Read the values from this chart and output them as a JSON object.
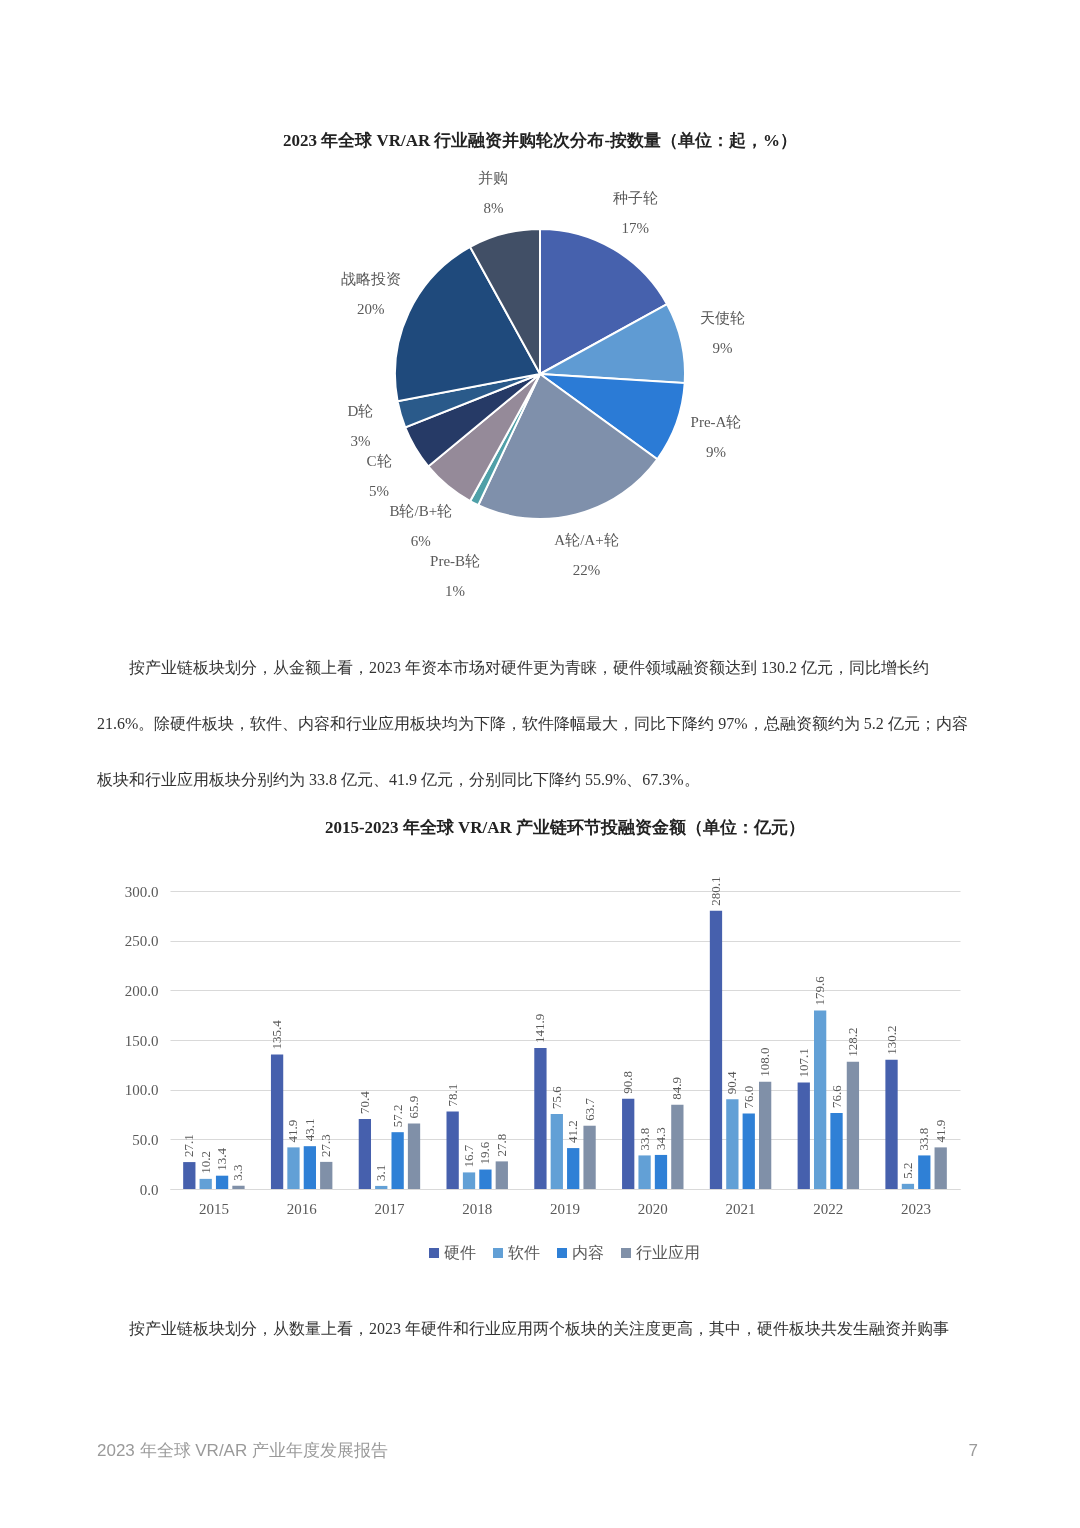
{
  "chart_data": [
    {
      "type": "pie",
      "title": "2023 年全球 VR/AR 行业融资并购轮次分布-按数量（单位：起，%）",
      "categories": [
        "种子轮",
        "天使轮",
        "Pre-A轮",
        "A轮/A+轮",
        "Pre-B轮",
        "B轮/B+轮",
        "C轮",
        "D轮",
        "战略投资",
        "并购"
      ],
      "values": [
        17,
        9,
        9,
        22,
        1,
        6,
        5,
        3,
        20,
        8
      ],
      "value_labels": [
        "17%",
        "9%",
        "9%",
        "22%",
        "1%",
        "6%",
        "5%",
        "3%",
        "20%",
        "8%"
      ],
      "colors": [
        "#4661ad",
        "#5f9bd3",
        "#2b7bd6",
        "#7f90ab",
        "#4fa0a8",
        "#958a99",
        "#263a66",
        "#2a5a8a",
        "#1f4a7c",
        "#414f66"
      ],
      "annotations": [
        "按产业链板块划分，从金额上看，2023 年资本市场对硬件更为青睐，硬件领域融资额达到 130.2 亿元，同比增长约21.6%。除硬件板块，软件、内容和行业应用板块均为下降，软件降幅最大，同比下降约 97%，总融资额约为 5.2 亿元；内容板块和行业应用板块分别约为 33.8 亿元、41.9 亿元，分别同比下降约 55.9%、67.3%。"
      ]
    },
    {
      "type": "bar",
      "title": "2015-2023 年全球 VR/AR 产业链环节投融资金额（单位：亿元）",
      "categories": [
        "2015",
        "2016",
        "2017",
        "2018",
        "2019",
        "2020",
        "2021",
        "2022",
        "2023"
      ],
      "series": [
        {
          "name": "硬件",
          "color": "#4660ad",
          "values": [
            27.1,
            135.4,
            70.4,
            78.1,
            141.9,
            90.8,
            280.1,
            107.1,
            130.2
          ],
          "value_labels": [
            "27.1",
            "135.4",
            "70.4",
            "78.1",
            "141.9",
            "90.8",
            "280.1",
            "107.1",
            "130.2"
          ]
        },
        {
          "name": "软件",
          "color": "#62a0d6",
          "values": [
            10.2,
            41.9,
            3.1,
            16.7,
            75.6,
            33.8,
            90.4,
            179.6,
            5.2
          ],
          "value_labels": [
            "10.2",
            "41.9",
            "3.1",
            "16.7",
            "75.6",
            "33.8",
            "90.4",
            "179.6",
            "5.2"
          ]
        },
        {
          "name": "内容",
          "color": "#2f80d6",
          "values": [
            13.4,
            43.1,
            57.2,
            19.6,
            41.2,
            34.3,
            76.0,
            76.6,
            33.8
          ],
          "value_labels": [
            "13.4",
            "43.1",
            "57.2",
            "19.6",
            "41.2",
            "34.3",
            "76.0",
            "76.6",
            "33.8"
          ]
        },
        {
          "name": "行业应用",
          "color": "#8090a8",
          "values": [
            3.3,
            27.3,
            65.9,
            27.8,
            63.7,
            84.9,
            108.0,
            128.2,
            41.9
          ],
          "value_labels": [
            "3.3",
            "27.3",
            "65.9",
            "27.8",
            "63.7",
            "84.9",
            "108.0",
            "128.2",
            "41.9"
          ]
        }
      ],
      "ylim": [
        0,
        300
      ],
      "yticks": [
        {
          "value": 0,
          "label": "0.0"
        },
        {
          "value": 50,
          "label": "50.0"
        },
        {
          "value": 100,
          "label": "100.0"
        },
        {
          "value": 150,
          "label": "150.0"
        },
        {
          "value": 200,
          "label": "200.0"
        },
        {
          "value": 250,
          "label": "250.0"
        },
        {
          "value": 300,
          "label": "300.0"
        }
      ],
      "grid": "y",
      "legend": "bottom",
      "annotations": [
        "按产业链板块划分，从数量上看，2023 年硬件和行业应用两个板块的关注度更高，其中，硬件板块共发生融资并购事",
        "2023 年全球 VR/AR 产业年度发展报告",
        "7"
      ]
    }
  ]
}
